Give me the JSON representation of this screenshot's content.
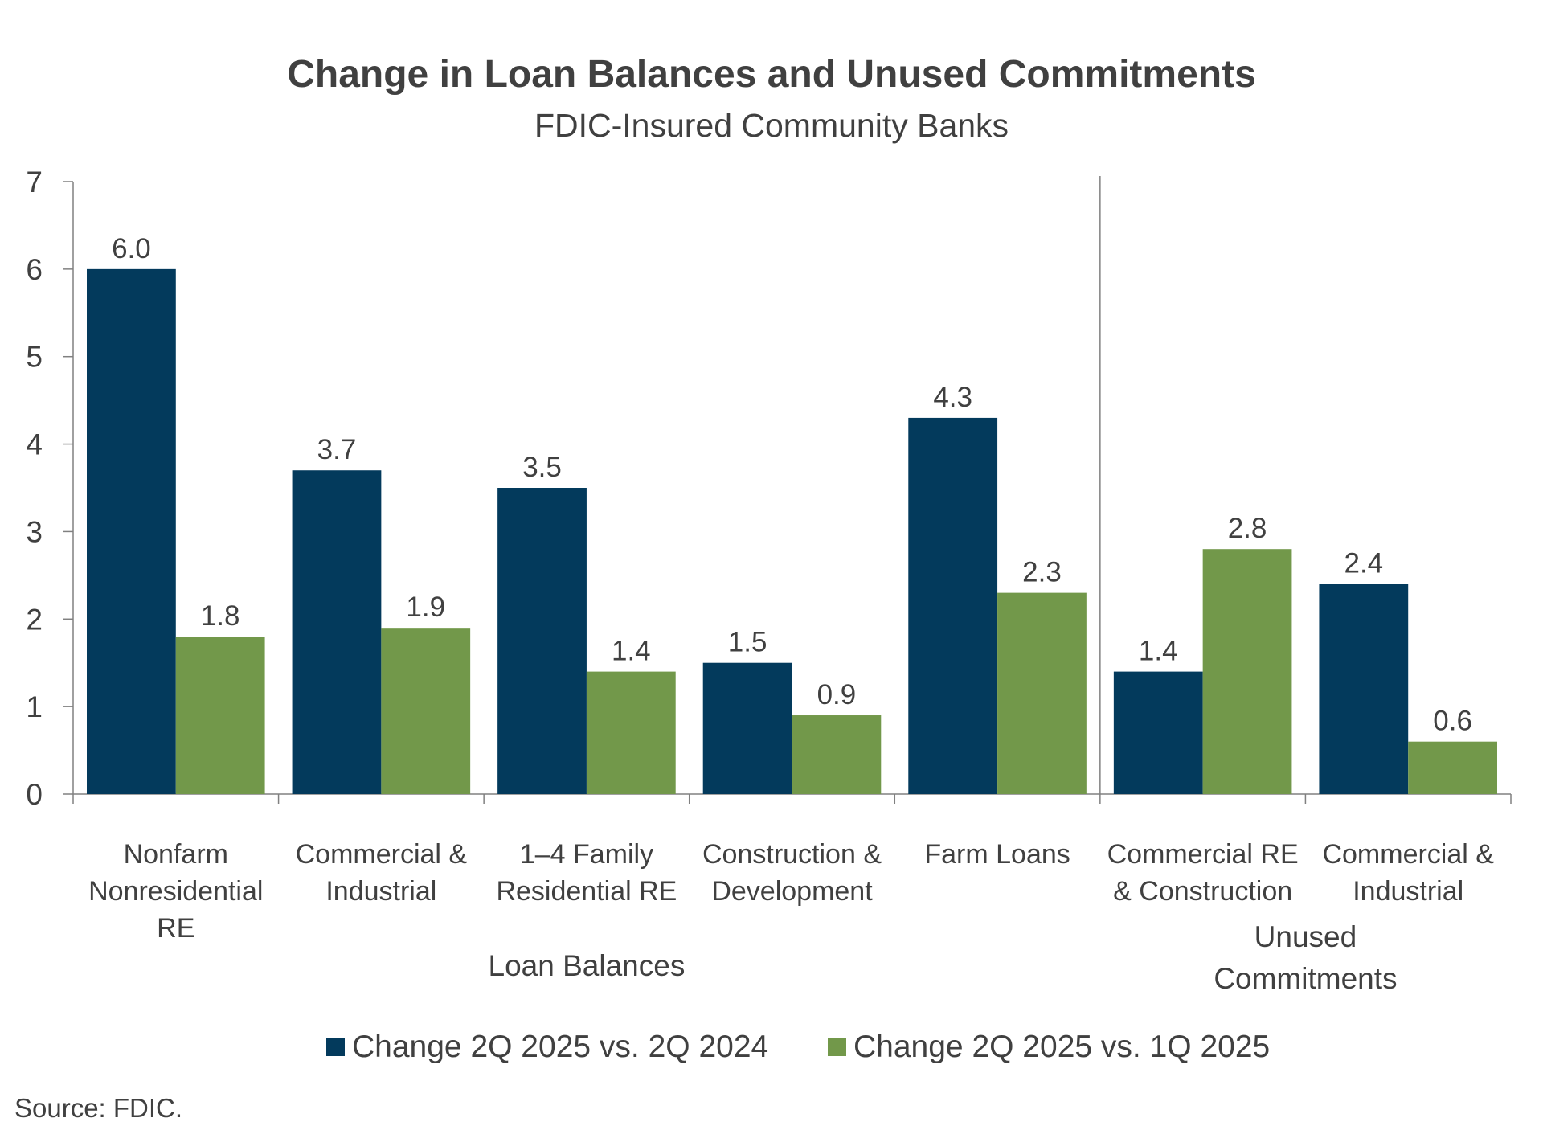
{
  "chart_data": {
    "type": "bar",
    "title": "Change in Loan Balances and Unused Commitments",
    "subtitle": "FDIC-Insured Community Banks",
    "xlabel": "",
    "ylabel": "",
    "ylim": [
      0,
      7
    ],
    "yticks": [
      "0",
      "1",
      "2",
      "3",
      "4",
      "5",
      "6",
      "7"
    ],
    "grid": false,
    "categories": [
      [
        "Nonfarm",
        "Nonresidential",
        "RE"
      ],
      [
        "Commercial &",
        "Industrial"
      ],
      [
        "1–4 Family",
        "Residential RE"
      ],
      [
        "Construction &",
        "Development"
      ],
      [
        "Farm Loans"
      ],
      [
        "Commercial RE",
        "& Construction"
      ],
      [
        "Commercial &",
        "Industrial"
      ]
    ],
    "groups": [
      {
        "label": [
          "Loan Balances"
        ],
        "categories": [
          0,
          1,
          2,
          3,
          4
        ]
      },
      {
        "label": [
          "Unused",
          "Commitments"
        ],
        "categories": [
          5,
          6
        ]
      }
    ],
    "series": [
      {
        "name": "Change 2Q 2025 vs. 2Q 2024",
        "color": "#033a5c",
        "values": [
          6.0,
          3.7,
          3.5,
          1.5,
          4.3,
          1.4,
          2.4
        ],
        "labels": [
          "6.0",
          "3.7",
          "3.5",
          "1.5",
          "4.3",
          "1.4",
          "2.4"
        ]
      },
      {
        "name": "Change 2Q 2025 vs. 1Q 2025",
        "color": "#72984a",
        "values": [
          1.8,
          1.9,
          1.4,
          0.9,
          2.3,
          2.8,
          0.6
        ],
        "labels": [
          "1.8",
          "1.9",
          "1.4",
          "0.9",
          "2.3",
          "2.8",
          "0.6"
        ]
      }
    ],
    "legend_position": "bottom-center",
    "source": "Source: FDIC."
  }
}
